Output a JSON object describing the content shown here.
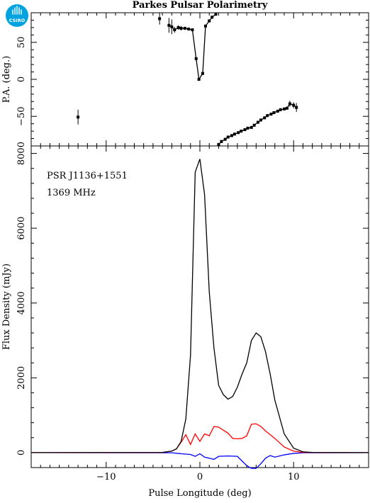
{
  "title": "Parkes Pulsar Polarimetry",
  "logo": {
    "text": "CSIRO",
    "color": "#00a3e0"
  },
  "annotations": {
    "psr": "PSR J1136+1551",
    "freq": "1369 MHz"
  },
  "colors": {
    "total": "#000000",
    "linear": "#ff0000",
    "circular": "#0000ff"
  },
  "chart_data": [
    {
      "id": "pa",
      "type": "scatter",
      "ylabel": "P.A. (deg.)",
      "xlim": [
        -18,
        18
      ],
      "ylim": [
        -90,
        90
      ],
      "xticks": [
        -10,
        0,
        10
      ],
      "yticks": [
        -50,
        0,
        50
      ],
      "ytick_labels": [
        "−50",
        "0",
        "50"
      ],
      "series": [
        {
          "connected": false,
          "points": [
            [
              -13.0,
              -51,
              10
            ],
            [
              -4.3,
              82,
              8
            ]
          ]
        },
        {
          "connected": true,
          "points": [
            [
              -3.3,
              73,
              10
            ],
            [
              -3.0,
              71,
              10
            ],
            [
              -2.7,
              67,
              4
            ],
            [
              -2.3,
              70,
              3
            ],
            [
              -2.0,
              69,
              3
            ],
            [
              -1.6,
              69,
              2
            ],
            [
              -1.2,
              68,
              2
            ],
            [
              -0.8,
              67,
              2
            ],
            [
              -0.4,
              28,
              2
            ],
            [
              -0.1,
              0,
              2
            ],
            [
              0.3,
              8,
              2
            ],
            [
              0.6,
              72,
              2
            ],
            [
              1.0,
              79,
              2
            ],
            [
              1.3,
              84,
              2
            ],
            [
              1.7,
              88,
              2
            ]
          ]
        },
        {
          "connected": true,
          "points": [
            [
              2.0,
              -88,
              2
            ],
            [
              2.3,
              -84,
              2
            ],
            [
              2.7,
              -81,
              2
            ],
            [
              3.0,
              -78,
              2
            ],
            [
              3.4,
              -76,
              2
            ],
            [
              3.7,
              -74,
              2
            ],
            [
              4.1,
              -72,
              2
            ],
            [
              4.4,
              -70,
              2
            ],
            [
              4.8,
              -68,
              2
            ],
            [
              5.1,
              -66,
              2
            ],
            [
              5.5,
              -65,
              2
            ],
            [
              5.8,
              -62,
              2
            ],
            [
              6.2,
              -58,
              2
            ],
            [
              6.5,
              -55,
              2
            ],
            [
              6.9,
              -52,
              2
            ],
            [
              7.2,
              -49,
              2
            ],
            [
              7.6,
              -47,
              2
            ],
            [
              7.9,
              -45,
              2
            ],
            [
              8.3,
              -43,
              2
            ],
            [
              8.6,
              -41,
              2
            ],
            [
              9.0,
              -40,
              2
            ],
            [
              9.3,
              -39,
              2
            ],
            [
              9.6,
              -33,
              4
            ],
            [
              10.0,
              -35,
              4
            ],
            [
              10.3,
              -38,
              6
            ]
          ]
        }
      ]
    },
    {
      "id": "flux",
      "type": "line",
      "xlabel": "Pulse Longitude (deg)",
      "ylabel": "Flux Density (mJy)",
      "xlim": [
        -18,
        18
      ],
      "ylim": [
        -400,
        8200
      ],
      "xticks": [
        -10,
        0,
        10
      ],
      "xtick_labels": [
        "−10",
        "0",
        "10"
      ],
      "yticks": [
        0,
        2000,
        4000,
        6000,
        8000
      ],
      "series": [
        {
          "key": "total",
          "x": [
            -18,
            -4,
            -3,
            -2.5,
            -2,
            -1.5,
            -1,
            -0.5,
            0,
            0.5,
            1,
            1.5,
            2,
            2.5,
            3,
            3.5,
            4,
            4.5,
            5,
            5.5,
            6,
            6.5,
            7,
            7.5,
            8,
            9,
            10,
            11,
            12,
            18
          ],
          "y": [
            0,
            5,
            40,
            100,
            300,
            900,
            2600,
            7500,
            7850,
            6900,
            4300,
            2800,
            1800,
            1550,
            1430,
            1500,
            1750,
            2100,
            2400,
            3000,
            3200,
            3100,
            2700,
            2100,
            1400,
            500,
            120,
            20,
            5,
            0
          ]
        },
        {
          "key": "linear",
          "x": [
            -18,
            -4,
            -3,
            -2.5,
            -2,
            -1.5,
            -1,
            -0.5,
            0,
            0.5,
            1,
            1.5,
            2,
            3,
            3.5,
            4,
            4.5,
            5,
            5.5,
            6,
            6.5,
            7,
            8,
            9,
            10,
            11,
            18
          ],
          "y": [
            0,
            5,
            40,
            100,
            280,
            480,
            220,
            500,
            300,
            500,
            450,
            700,
            680,
            520,
            380,
            370,
            380,
            450,
            760,
            770,
            700,
            580,
            380,
            150,
            40,
            5,
            0
          ]
        },
        {
          "key": "circular",
          "x": [
            -18,
            -3,
            -2,
            -1,
            -0.5,
            0,
            0.5,
            1,
            1.5,
            2,
            3,
            4,
            5,
            5.5,
            6,
            6.5,
            7,
            7.5,
            8,
            9,
            10,
            11,
            18
          ],
          "y": [
            0,
            -5,
            -30,
            -50,
            -100,
            -30,
            -120,
            -150,
            -180,
            -100,
            -90,
            -100,
            -350,
            -420,
            -420,
            -300,
            -150,
            -80,
            -120,
            -60,
            -20,
            -5,
            0
          ]
        }
      ]
    }
  ]
}
